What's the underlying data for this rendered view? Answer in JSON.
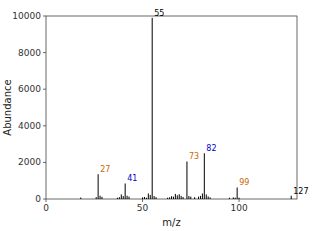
{
  "chart_data": {
    "type": "bar",
    "xlabel": "m/z",
    "ylabel": "Abundance",
    "x": [
      18,
      26,
      27,
      28,
      29,
      37,
      38,
      39,
      40,
      41,
      42,
      43,
      50,
      51,
      52,
      53,
      54,
      55,
      56,
      57,
      63,
      64,
      65,
      66,
      67,
      68,
      69,
      70,
      71,
      73,
      74,
      75,
      77,
      79,
      80,
      81,
      82,
      83,
      84,
      85,
      95,
      97,
      98,
      99,
      100,
      127
    ],
    "values": [
      80,
      100,
      1350,
      180,
      120,
      70,
      100,
      250,
      160,
      850,
      180,
      130,
      90,
      110,
      70,
      300,
      220,
      9900,
      160,
      100,
      70,
      90,
      150,
      130,
      280,
      200,
      260,
      170,
      110,
      2050,
      160,
      130,
      100,
      130,
      170,
      300,
      2500,
      250,
      140,
      90,
      70,
      90,
      70,
      630,
      70,
      180
    ],
    "color": "#000000",
    "xlim": [
      0,
      130
    ],
    "xticks": [
      0,
      50,
      100
    ],
    "ylim": [
      0,
      10000
    ],
    "yticks": [
      0,
      2000,
      4000,
      6000,
      8000,
      10000
    ],
    "annotations": [
      {
        "text": "27",
        "x": 27,
        "y": 1350,
        "color": "#cc6600"
      },
      {
        "text": "41",
        "x": 41,
        "y": 850,
        "color": "#0000cc"
      },
      {
        "text": "55",
        "x": 55,
        "y": 9900,
        "color": "#000000"
      },
      {
        "text": "73",
        "x": 73,
        "y": 2050,
        "color": "#cc6600"
      },
      {
        "text": "82",
        "x": 82,
        "y": 2500,
        "color": "#0000cc"
      },
      {
        "text": "99",
        "x": 99,
        "y": 630,
        "color": "#cc6600"
      },
      {
        "text": "127",
        "x": 127,
        "y": 180,
        "color": "#000000"
      }
    ]
  }
}
